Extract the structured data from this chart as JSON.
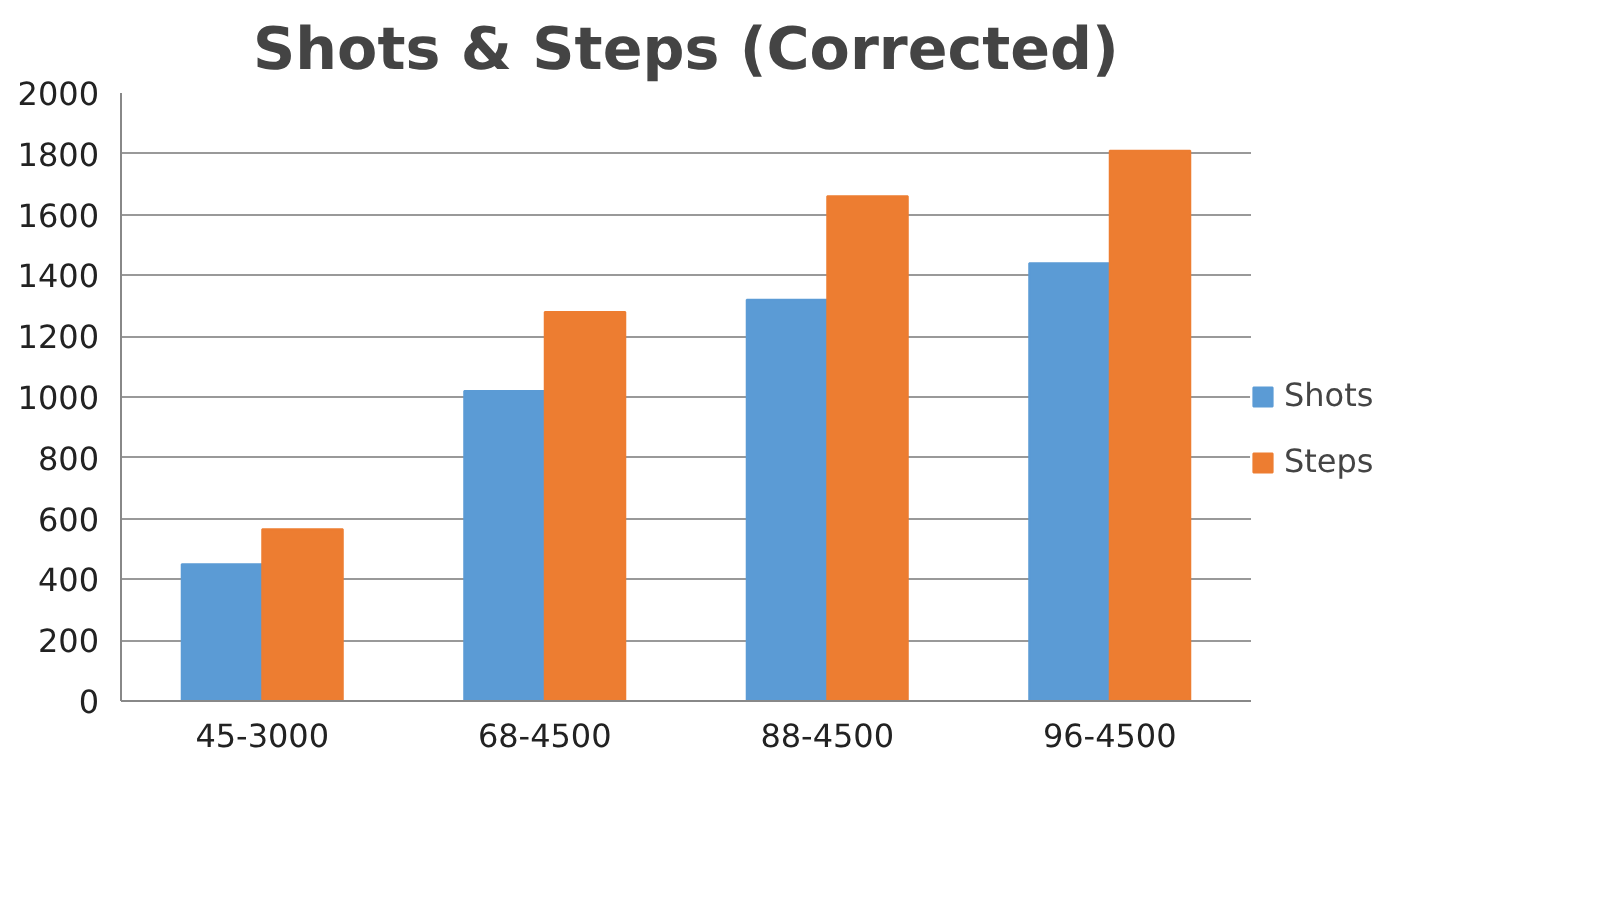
{
  "chart_data": {
    "type": "bar",
    "title": "Shots & Steps (Corrected)",
    "categories": [
      "45-3000",
      "68-4500",
      "88-4500",
      "96-4500"
    ],
    "series": [
      {
        "name": "Shots",
        "color": "#5b9bd5",
        "values": [
          450,
          1020,
          1320,
          1440
        ]
      },
      {
        "name": "Steps",
        "color": "#ed7d31",
        "values": [
          565,
          1280,
          1660,
          1810
        ]
      }
    ],
    "ylim": [
      0,
      2000
    ],
    "yticks": [
      0,
      200,
      400,
      600,
      800,
      1000,
      1200,
      1400,
      1600,
      1800,
      2000
    ],
    "grid": "y",
    "legend": "right"
  }
}
